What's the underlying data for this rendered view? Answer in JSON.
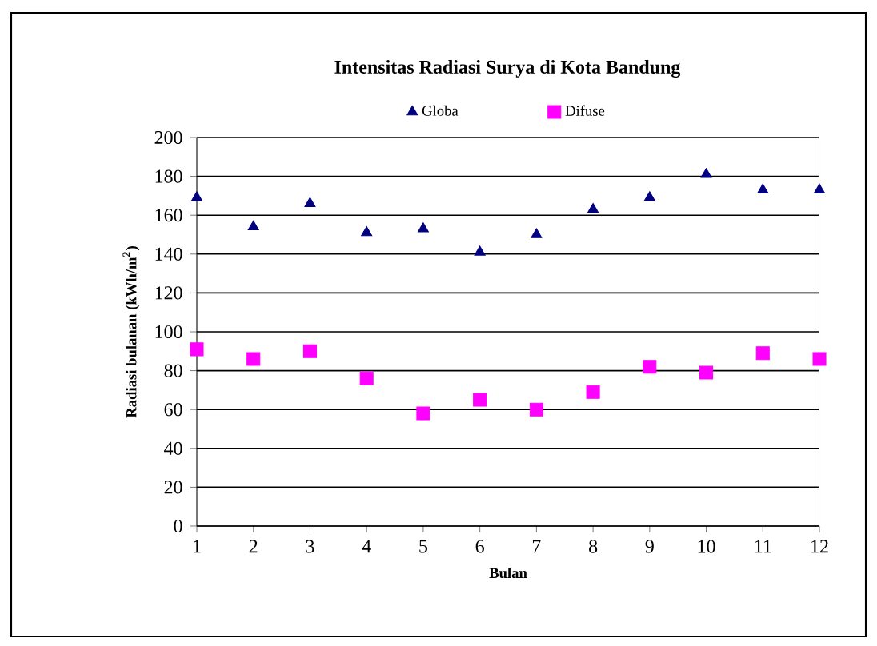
{
  "chart_data": {
    "type": "scatter",
    "title": "Intensitas Radiasi Surya di Kota Bandung",
    "xlabel": "Bulan",
    "ylabel": "Radiasi bulanan (kWh/m$^{2}$)",
    "categories": [
      "1",
      "2",
      "3",
      "4",
      "5",
      "6",
      "7",
      "8",
      "9",
      "10",
      "11",
      "12"
    ],
    "series": [
      {
        "name": "Globa",
        "color": "#000080",
        "marker": "triangle",
        "values": [
          169,
          154,
          166,
          151,
          153,
          141,
          150,
          163,
          169,
          181,
          173,
          173
        ]
      },
      {
        "name": "Difuse",
        "color": "#ff00ff",
        "marker": "square",
        "values": [
          91,
          86,
          90,
          76,
          58,
          65,
          60,
          69,
          82,
          79,
          89,
          86
        ]
      }
    ],
    "ylim": [
      0,
      200
    ],
    "yticks": [
      0,
      20,
      40,
      60,
      80,
      100,
      120,
      140,
      160,
      180,
      200
    ],
    "grid": "y",
    "legend": "top"
  }
}
